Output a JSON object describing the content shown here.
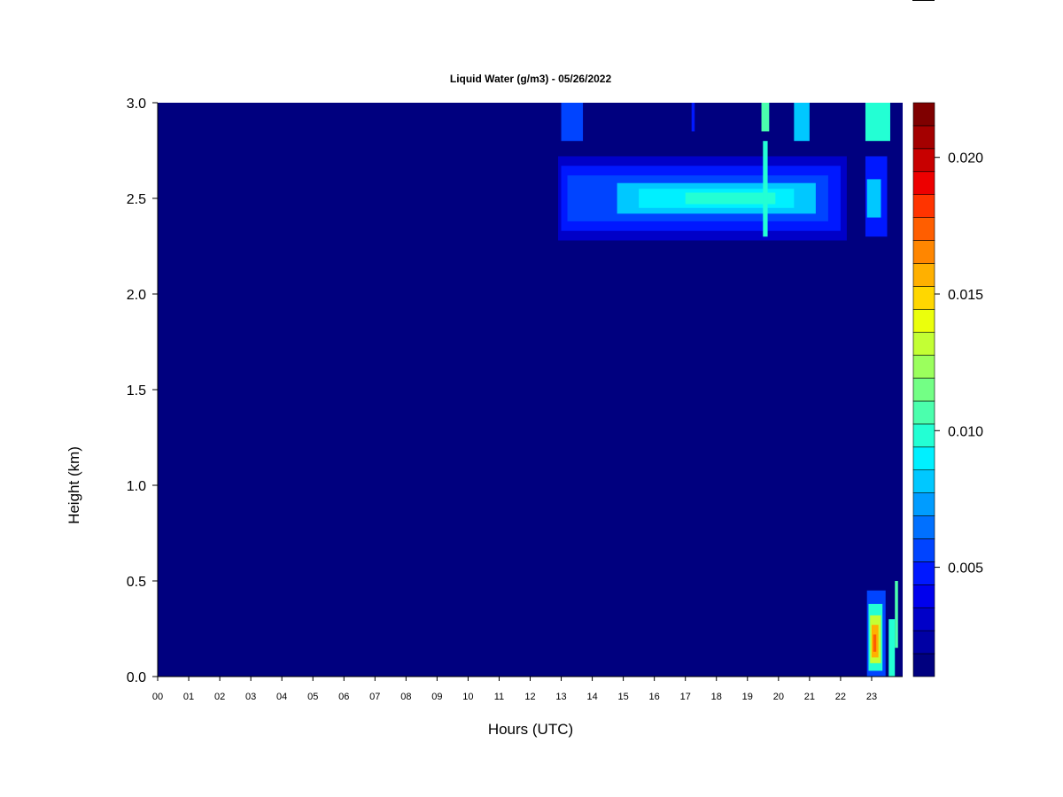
{
  "chart_data": {
    "type": "heatmap",
    "title": "Liquid Water (g/m3) - 05/26/2022",
    "xlabel": "Hours (UTC)",
    "ylabel": "Height (km)",
    "xlim": [
      0,
      24
    ],
    "ylim": [
      0,
      3.0
    ],
    "x_ticks": [
      "00",
      "01",
      "02",
      "03",
      "04",
      "05",
      "06",
      "07",
      "08",
      "09",
      "10",
      "11",
      "12",
      "13",
      "14",
      "15",
      "16",
      "17",
      "18",
      "19",
      "20",
      "21",
      "22",
      "23"
    ],
    "y_ticks": [
      "0.0",
      "0.5",
      "1.0",
      "1.5",
      "2.0",
      "2.5",
      "3.0"
    ],
    "colorbar": {
      "min": 0.001,
      "max": 0.022,
      "ticks": [
        "0.005",
        "0.010",
        "0.015",
        "0.020"
      ],
      "colors": [
        "#00007f",
        "#0000a4",
        "#0000c8",
        "#0000ed",
        "#0018ff",
        "#0044ff",
        "#0070ff",
        "#009cff",
        "#00c8ff",
        "#00f0ff",
        "#23ffd4",
        "#4bffad",
        "#73ff85",
        "#9bff5d",
        "#c3ff34",
        "#ebff0c",
        "#ffd700",
        "#ffb000",
        "#ff8600",
        "#ff5e00",
        "#ff3400",
        "#ed0000",
        "#c80000",
        "#a40000",
        "#7f0000"
      ]
    },
    "background_value": 0.0,
    "cloud_features": [
      {
        "name": "cloud layer ~2.5 km",
        "x_range": [
          12.9,
          22.2
        ],
        "y_range": [
          2.28,
          2.72
        ],
        "peak_value": 0.01
      },
      {
        "name": "cloud tops near 3 km",
        "x_range": [
          12.9,
          24.0
        ],
        "y_range": [
          2.8,
          3.0
        ],
        "peak_value": 0.012
      },
      {
        "name": "low-level liquid water near surface",
        "x_range": [
          22.8,
          24.0
        ],
        "y_range": [
          0.0,
          0.48
        ],
        "peak_value": 0.017
      }
    ],
    "cells": [
      {
        "x0": 13.0,
        "x1": 13.7,
        "y0": 2.8,
        "y1": 3.0,
        "v": 0.006
      },
      {
        "x0": 17.2,
        "x1": 17.3,
        "y0": 2.85,
        "y1": 3.0,
        "v": 0.005
      },
      {
        "x0": 19.45,
        "x1": 19.7,
        "y0": 2.85,
        "y1": 3.0,
        "v": 0.011
      },
      {
        "x0": 20.5,
        "x1": 21.0,
        "y0": 2.8,
        "y1": 3.0,
        "v": 0.008
      },
      {
        "x0": 22.8,
        "x1": 23.6,
        "y0": 2.8,
        "y1": 3.0,
        "v": 0.01
      },
      {
        "x0": 12.9,
        "x1": 22.2,
        "y0": 2.28,
        "y1": 2.72,
        "v": 0.003
      },
      {
        "x0": 13.0,
        "x1": 22.0,
        "y0": 2.33,
        "y1": 2.67,
        "v": 0.005
      },
      {
        "x0": 13.2,
        "x1": 21.6,
        "y0": 2.38,
        "y1": 2.62,
        "v": 0.006
      },
      {
        "x0": 14.8,
        "x1": 21.2,
        "y0": 2.42,
        "y1": 2.58,
        "v": 0.008
      },
      {
        "x0": 15.5,
        "x1": 20.5,
        "y0": 2.45,
        "y1": 2.55,
        "v": 0.009
      },
      {
        "x0": 17.0,
        "x1": 19.9,
        "y0": 2.47,
        "y1": 2.53,
        "v": 0.01
      },
      {
        "x0": 19.5,
        "x1": 19.65,
        "y0": 2.3,
        "y1": 2.8,
        "v": 0.01
      },
      {
        "x0": 22.8,
        "x1": 23.5,
        "y0": 2.3,
        "y1": 2.72,
        "v": 0.005
      },
      {
        "x0": 22.85,
        "x1": 23.3,
        "y0": 2.4,
        "y1": 2.6,
        "v": 0.008
      },
      {
        "x0": 22.85,
        "x1": 23.45,
        "y0": 0.0,
        "y1": 0.45,
        "v": 0.006
      },
      {
        "x0": 22.9,
        "x1": 23.35,
        "y0": 0.03,
        "y1": 0.38,
        "v": 0.01
      },
      {
        "x0": 22.95,
        "x1": 23.3,
        "y0": 0.07,
        "y1": 0.32,
        "v": 0.013
      },
      {
        "x0": 23.0,
        "x1": 23.22,
        "y0": 0.1,
        "y1": 0.27,
        "v": 0.016
      },
      {
        "x0": 23.05,
        "x1": 23.15,
        "y0": 0.13,
        "y1": 0.22,
        "v": 0.017
      },
      {
        "x0": 23.55,
        "x1": 23.75,
        "y0": 0.0,
        "y1": 0.3,
        "v": 0.01
      },
      {
        "x0": 23.75,
        "x1": 23.85,
        "y0": 0.15,
        "y1": 0.5,
        "v": 0.011
      }
    ]
  }
}
